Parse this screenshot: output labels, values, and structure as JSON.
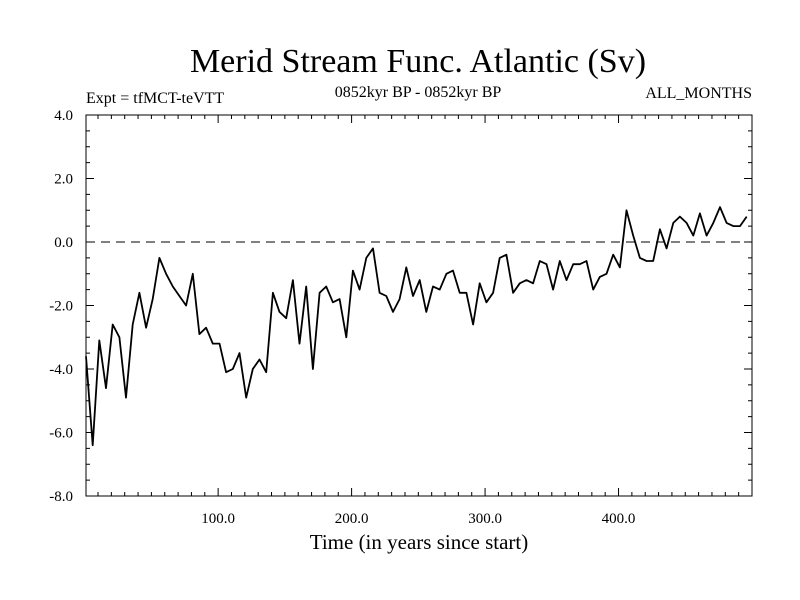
{
  "chart_data": {
    "type": "line",
    "title": "Merid Stream Func. Atlantic (Sv)",
    "subtitle_left": "Expt = tfMCT-teVTT",
    "subtitle_center": "0852kyr BP - 0852kyr BP",
    "subtitle_right": "ALL_MONTHS",
    "xlabel": "Time (in years since start)",
    "ylabel": "",
    "xlim": [
      1,
      500
    ],
    "ylim": [
      -8,
      4
    ],
    "x_ticks": [
      100,
      200,
      300,
      400
    ],
    "x_tick_labels": [
      "100.0",
      "200.0",
      "300.0",
      "400.0"
    ],
    "y_ticks": [
      -8,
      -6,
      -4,
      -2,
      0,
      2,
      4
    ],
    "y_tick_labels": [
      "-8.0",
      "-6.0",
      "-4.0",
      "-2.0",
      "0.0",
      "2.0",
      "4.0"
    ],
    "zero_line": "dashed",
    "series": [
      {
        "name": "Merid Stream Func. Atlantic",
        "x_start": 1,
        "x_step": 5,
        "values": [
          -3.6,
          -6.4,
          -3.1,
          -4.6,
          -2.6,
          -3.0,
          -4.9,
          -2.6,
          -1.6,
          -2.7,
          -1.8,
          -0.5,
          -1.0,
          -1.4,
          -1.7,
          -2.0,
          -1.0,
          -2.9,
          -2.7,
          -3.2,
          -3.2,
          -4.1,
          -4.0,
          -3.5,
          -4.9,
          -4.0,
          -3.7,
          -4.1,
          -1.6,
          -2.2,
          -2.4,
          -1.2,
          -3.2,
          -1.4,
          -4.0,
          -1.6,
          -1.4,
          -1.9,
          -1.8,
          -3.0,
          -0.9,
          -1.5,
          -0.5,
          -0.2,
          -1.6,
          -1.7,
          -2.2,
          -1.8,
          -0.8,
          -1.7,
          -1.2,
          -2.2,
          -1.4,
          -1.5,
          -1.0,
          -0.9,
          -1.6,
          -1.6,
          -2.6,
          -1.3,
          -1.9,
          -1.6,
          -0.5,
          -0.4,
          -1.6,
          -1.3,
          -1.2,
          -1.3,
          -0.6,
          -0.7,
          -1.5,
          -0.6,
          -1.2,
          -0.7,
          -0.7,
          -0.6,
          -1.5,
          -1.1,
          -1.0,
          -0.4,
          -0.8,
          1.0,
          0.2,
          -0.5,
          -0.6,
          -0.6,
          0.4,
          -0.2,
          0.6,
          0.8,
          0.6,
          0.2,
          0.9,
          0.2,
          0.6,
          1.1,
          0.6,
          0.5,
          0.5,
          0.8
        ]
      }
    ]
  }
}
